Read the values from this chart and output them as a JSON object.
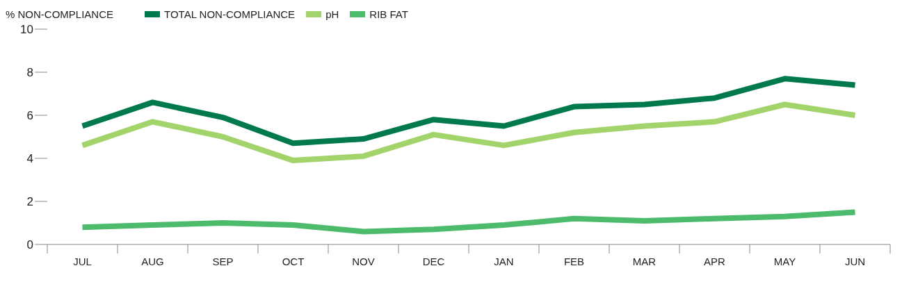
{
  "chart_data": {
    "type": "line",
    "ylabel": "% NON-COMPLIANCE",
    "categories": [
      "JUL",
      "AUG",
      "SEP",
      "OCT",
      "NOV",
      "DEC",
      "JAN",
      "FEB",
      "MAR",
      "APR",
      "MAY",
      "JUN"
    ],
    "series": [
      {
        "name": "TOTAL NON-COMPLIANCE",
        "color": "#007a4d",
        "values": [
          5.5,
          6.6,
          5.9,
          4.7,
          4.9,
          5.8,
          5.5,
          6.4,
          6.5,
          6.8,
          7.7,
          7.4
        ]
      },
      {
        "name": "pH",
        "color": "#a3d36b",
        "values": [
          4.6,
          5.7,
          5.0,
          3.9,
          4.1,
          5.1,
          4.6,
          5.2,
          5.5,
          5.7,
          6.5,
          6.0
        ]
      },
      {
        "name": "RIB FAT",
        "color": "#4cbb6c",
        "values": [
          0.8,
          0.9,
          1.0,
          0.9,
          0.6,
          0.7,
          0.9,
          1.2,
          1.1,
          1.2,
          1.3,
          1.5
        ]
      }
    ],
    "ylim": [
      0,
      10
    ],
    "yticks": [
      0,
      2,
      4,
      6,
      8,
      10
    ],
    "grid": false,
    "legend": "top",
    "marker": "none",
    "line_style": "solid"
  }
}
